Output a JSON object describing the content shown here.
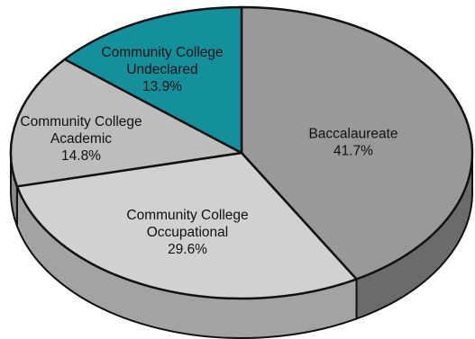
{
  "chart_data": {
    "type": "pie",
    "style": "3d",
    "start_angle_deg": 0,
    "direction": "clockwise",
    "title": "",
    "slices": [
      {
        "name_lines": [
          "Baccalaureate"
        ],
        "value": 41.7,
        "value_label": "41.7%",
        "color": "#999999",
        "side_color": "#6b6b6b"
      },
      {
        "name_lines": [
          "Community College",
          "Occupational"
        ],
        "value": 29.6,
        "value_label": "29.6%",
        "color": "#d1d1d1",
        "side_color": "#a3a3a3"
      },
      {
        "name_lines": [
          "Community College",
          "Academic"
        ],
        "value": 14.8,
        "value_label": "14.8%",
        "color": "#bdbdbd",
        "side_color": "#8a8a8a"
      },
      {
        "name_lines": [
          "Community College",
          "Undeclared"
        ],
        "value": 13.9,
        "value_label": "13.9%",
        "color": "#14909c",
        "side_color": "#0c5e66"
      }
    ]
  }
}
